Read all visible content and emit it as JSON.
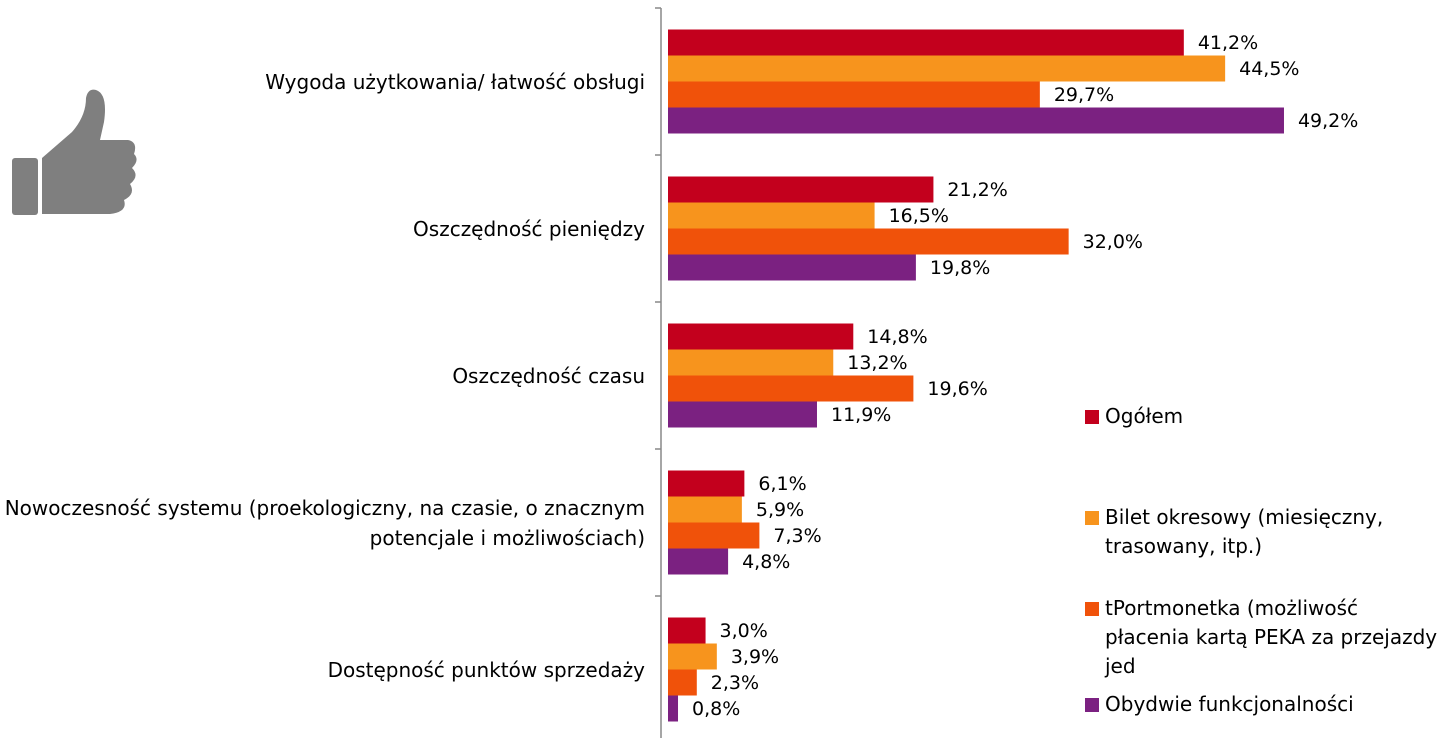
{
  "chart_data": {
    "type": "bar",
    "orientation": "horizontal",
    "categories": [
      "Wygoda użytkowania/ łatwość obsługi",
      "Oszczędność pieniędzy",
      "Oszczędność czasu",
      "Nowoczesność systemu (proekologiczny, na czasie, o znacznym potencjale i możliwościach)",
      "Dostępność punktów sprzedaży"
    ],
    "series": [
      {
        "name": "Ogółem",
        "color": "#c3001d",
        "values": [
          41.2,
          21.2,
          14.8,
          6.1,
          3.0
        ],
        "value_labels": [
          "41,2%",
          "21,2%",
          "14,8%",
          "6,1%",
          "3,0%"
        ]
      },
      {
        "name": "Bilet okresowy (miesięczny, trasowany, itp.)",
        "color": "#f7941d",
        "values": [
          44.5,
          16.5,
          13.2,
          5.9,
          3.9
        ],
        "value_labels": [
          "44,5%",
          "16,5%",
          "13,2%",
          "5,9%",
          "3,9%"
        ]
      },
      {
        "name": "tPortmonetka (możliwość płacenia kartą PEKA za przejazdy jed",
        "color": "#f0520a",
        "values": [
          29.7,
          32.0,
          19.6,
          7.3,
          2.3
        ],
        "value_labels": [
          "29,7%",
          "32,0%",
          "19,6%",
          "7,3%",
          "2,3%"
        ]
      },
      {
        "name": "Obydwie funkcjonalności",
        "color": "#7b2181",
        "values": [
          49.2,
          19.8,
          11.9,
          4.8,
          0.8
        ],
        "value_labels": [
          "49,2%",
          "19,8%",
          "11,9%",
          "4,8%",
          "0,8%"
        ]
      }
    ],
    "xlim": [
      0,
      50
    ],
    "legend": "right"
  }
}
